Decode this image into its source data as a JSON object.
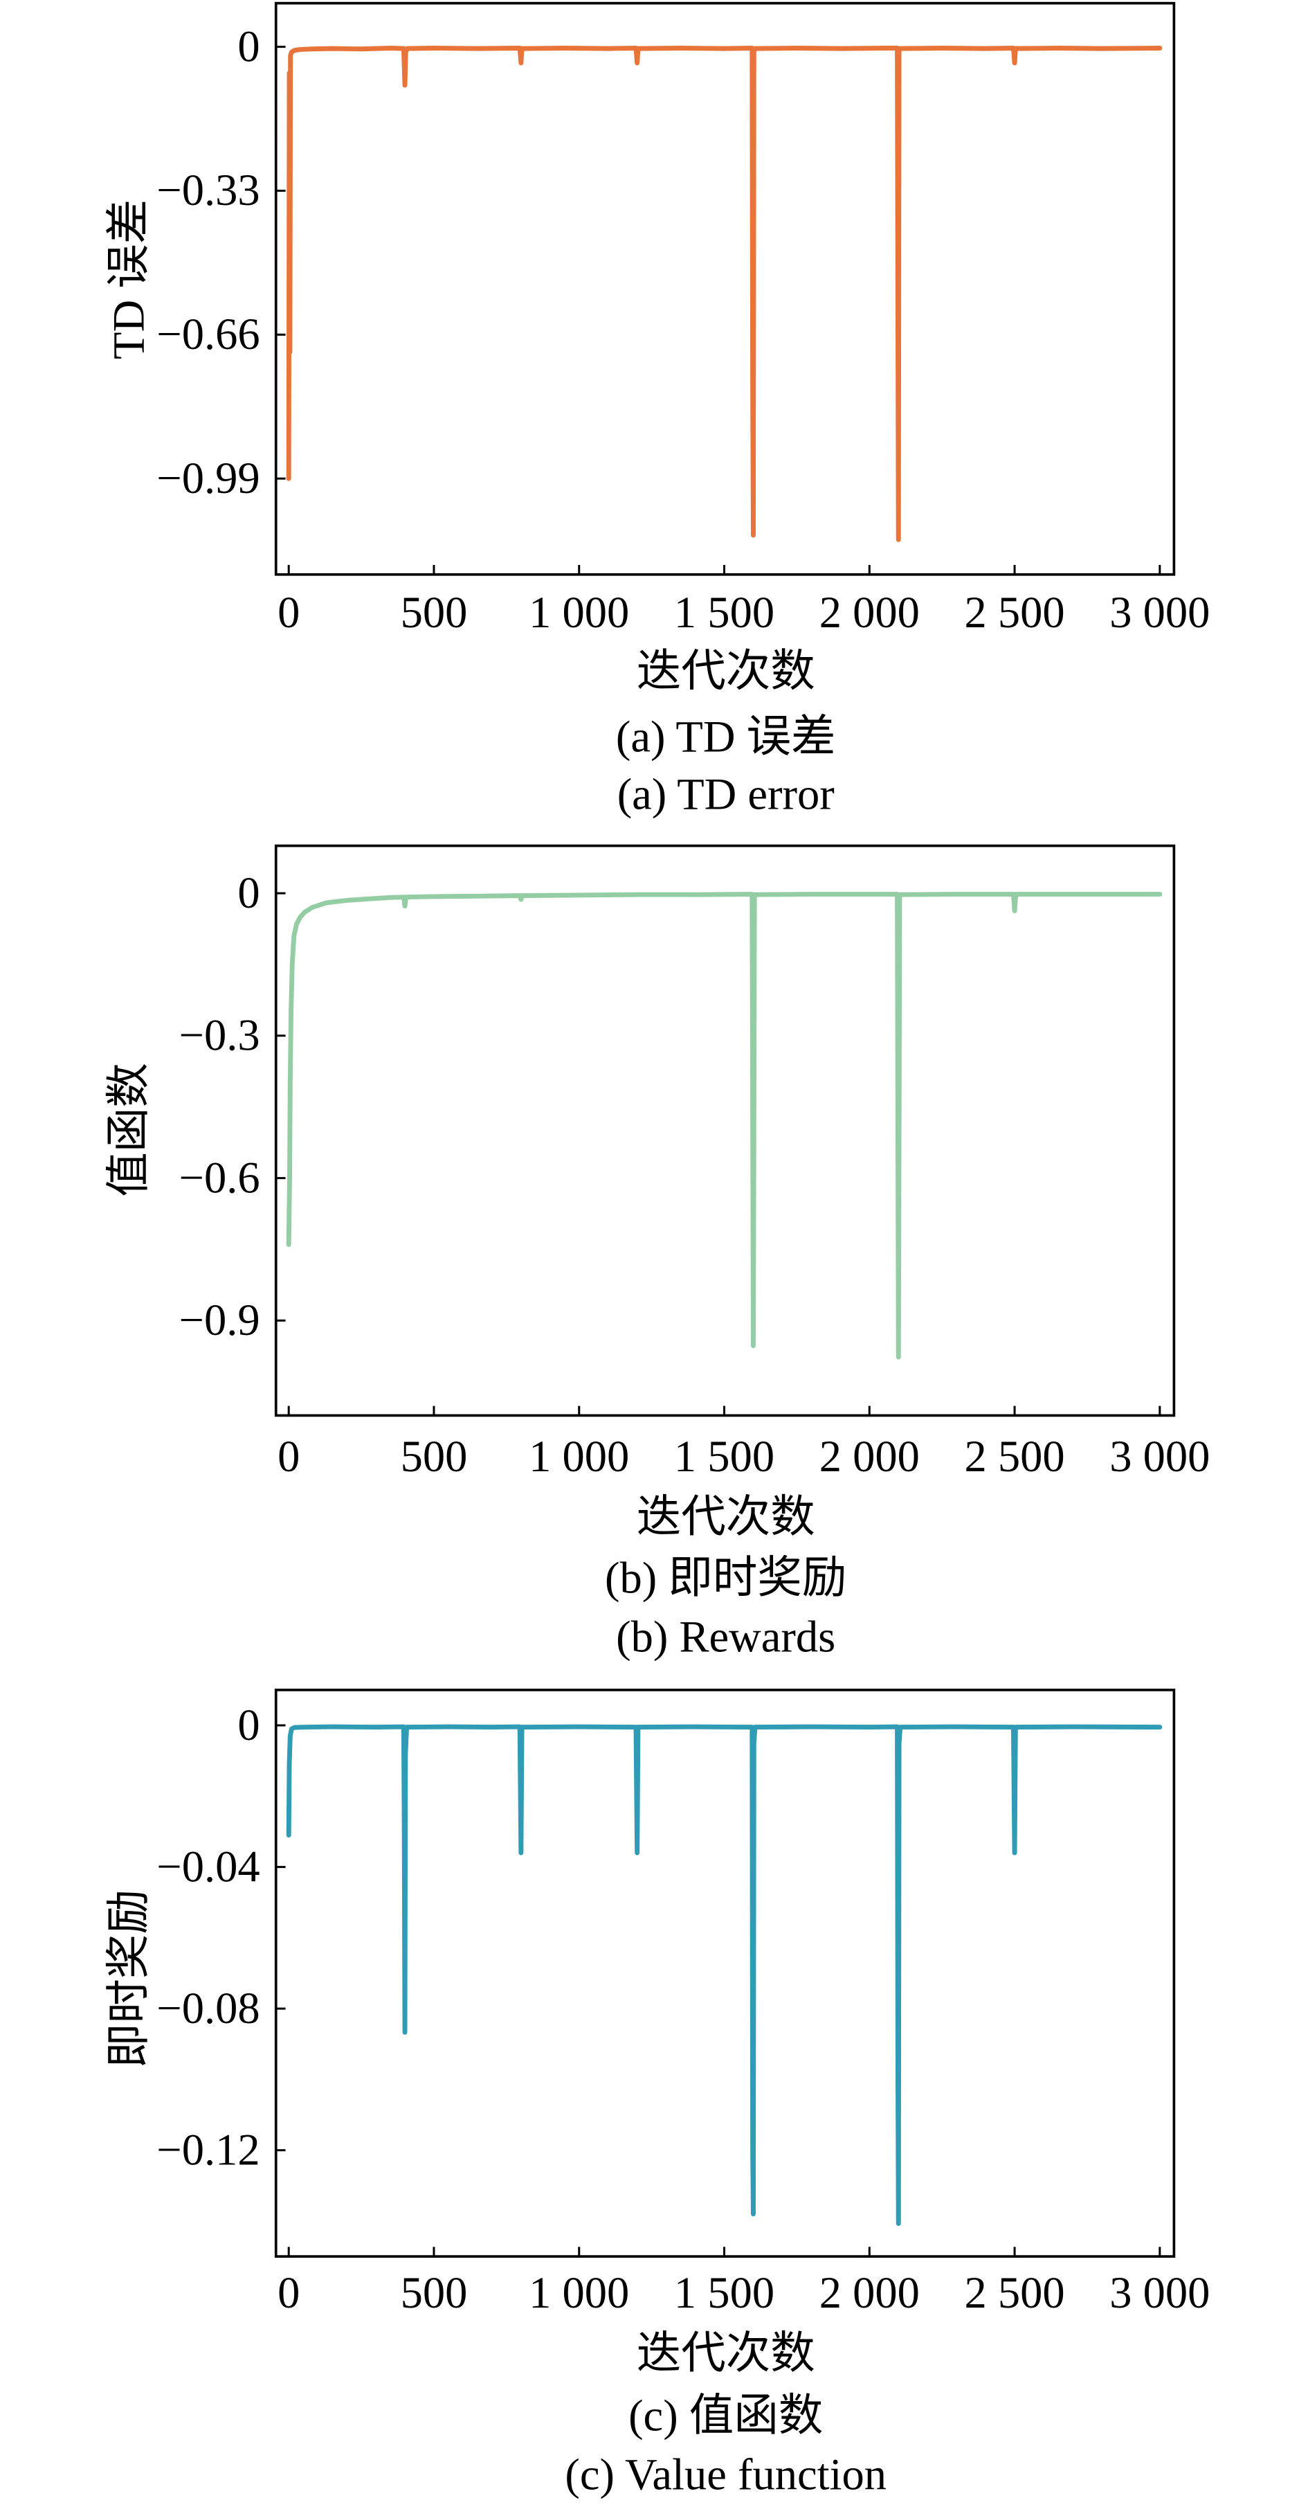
{
  "chart_data": [
    {
      "type": "line",
      "xlabel": "迭代次数",
      "ylabel": "TD 误差",
      "caption": [
        "(a) TD 误差",
        "(a) TD error"
      ],
      "x_ticks": [
        0,
        500,
        1000,
        1500,
        2000,
        2500,
        3000
      ],
      "x_tick_labels": [
        "0",
        "500",
        "1 000",
        "1 500",
        "2 000",
        "2 500",
        "3 000"
      ],
      "y_ticks": [
        0,
        -0.33,
        -0.66,
        -0.99
      ],
      "y_tick_labels": [
        "0",
        "−0.33",
        "−0.66",
        "−0.99"
      ],
      "xlim": [
        -44,
        3049
      ],
      "ylim": [
        -1.21,
        0.1
      ],
      "grid": false,
      "color": "#e8743a",
      "series": [
        {
          "points": [
            [
              0,
              -0.99
            ],
            [
              2,
              -0.06
            ],
            [
              4,
              -0.7
            ],
            [
              6,
              -0.02
            ],
            [
              10,
              -0.012
            ],
            [
              20,
              -0.008
            ],
            [
              40,
              -0.006
            ],
            [
              80,
              -0.005
            ],
            [
              150,
              -0.004
            ],
            [
              250,
              -0.005
            ],
            [
              350,
              -0.003
            ],
            [
              396,
              -0.004
            ],
            [
              400,
              -0.088
            ],
            [
              403,
              -0.012
            ],
            [
              408,
              -0.004
            ],
            [
              500,
              -0.003
            ],
            [
              650,
              -0.004
            ],
            [
              796,
              -0.003
            ],
            [
              800,
              -0.037
            ],
            [
              803,
              -0.004
            ],
            [
              950,
              -0.003
            ],
            [
              1100,
              -0.004
            ],
            [
              1196,
              -0.003
            ],
            [
              1200,
              -0.037
            ],
            [
              1203,
              -0.004
            ],
            [
              1350,
              -0.003
            ],
            [
              1500,
              -0.004
            ],
            [
              1596,
              -0.003
            ],
            [
              1598,
              -0.79
            ],
            [
              1600,
              -1.12
            ],
            [
              1602,
              -0.01
            ],
            [
              1606,
              -0.004
            ],
            [
              1750,
              -0.003
            ],
            [
              1900,
              -0.004
            ],
            [
              2050,
              -0.003
            ],
            [
              2096,
              -0.003
            ],
            [
              2098,
              -0.62
            ],
            [
              2100,
              -1.13
            ],
            [
              2102,
              -0.01
            ],
            [
              2106,
              -0.004
            ],
            [
              2250,
              -0.003
            ],
            [
              2400,
              -0.004
            ],
            [
              2496,
              -0.003
            ],
            [
              2500,
              -0.037
            ],
            [
              2503,
              -0.004
            ],
            [
              2650,
              -0.003
            ],
            [
              2800,
              -0.004
            ],
            [
              3000,
              -0.003
            ]
          ]
        }
      ]
    },
    {
      "type": "line",
      "xlabel": "迭代次数",
      "ylabel": "值函数",
      "caption": [
        "(b) 即时奖励",
        "(b) Rewards"
      ],
      "x_ticks": [
        0,
        500,
        1000,
        1500,
        2000,
        2500,
        3000
      ],
      "x_tick_labels": [
        "0",
        "500",
        "1 000",
        "1 500",
        "2 000",
        "2 500",
        "3 000"
      ],
      "y_ticks": [
        0,
        -0.3,
        -0.6,
        -0.9
      ],
      "y_tick_labels": [
        "0",
        "−0.3",
        "−0.6",
        "−0.9"
      ],
      "xlim": [
        -44,
        3049
      ],
      "ylim": [
        -1.1,
        0.1
      ],
      "grid": false,
      "color": "#94cca4",
      "series": [
        {
          "points": [
            [
              0,
              -0.74
            ],
            [
              3,
              -0.6
            ],
            [
              5,
              -0.4
            ],
            [
              8,
              -0.25
            ],
            [
              12,
              -0.15
            ],
            [
              18,
              -0.09
            ],
            [
              27,
              -0.065
            ],
            [
              40,
              -0.05
            ],
            [
              55,
              -0.04
            ],
            [
              80,
              -0.03
            ],
            [
              130,
              -0.02
            ],
            [
              200,
              -0.015
            ],
            [
              270,
              -0.012
            ],
            [
              350,
              -0.009
            ],
            [
              396,
              -0.008
            ],
            [
              400,
              -0.027
            ],
            [
              404,
              -0.008
            ],
            [
              500,
              -0.007
            ],
            [
              650,
              -0.006
            ],
            [
              796,
              -0.005
            ],
            [
              800,
              -0.013
            ],
            [
              804,
              -0.005
            ],
            [
              1000,
              -0.004
            ],
            [
              1200,
              -0.003
            ],
            [
              1400,
              -0.003
            ],
            [
              1596,
              -0.002
            ],
            [
              1600,
              -0.953
            ],
            [
              1604,
              -0.003
            ],
            [
              1800,
              -0.002
            ],
            [
              2000,
              -0.002
            ],
            [
              2096,
              -0.002
            ],
            [
              2100,
              -0.977
            ],
            [
              2104,
              -0.003
            ],
            [
              2300,
              -0.002
            ],
            [
              2496,
              -0.002
            ],
            [
              2500,
              -0.037
            ],
            [
              2504,
              -0.002
            ],
            [
              2700,
              -0.002
            ],
            [
              3000,
              -0.002
            ]
          ]
        }
      ]
    },
    {
      "type": "line",
      "xlabel": "迭代次数",
      "ylabel": "即时奖励",
      "caption": [
        "(c) 值函数",
        "(c) Value function"
      ],
      "x_ticks": [
        0,
        500,
        1000,
        1500,
        2000,
        2500,
        3000
      ],
      "x_tick_labels": [
        "0",
        "500",
        "1 000",
        "1 500",
        "2 000",
        "2 500",
        "3 000"
      ],
      "y_ticks": [
        0,
        -0.04,
        -0.08,
        -0.12
      ],
      "y_tick_labels": [
        "0",
        "−0.04",
        "−0.08",
        "−0.12"
      ],
      "xlim": [
        -44,
        3049
      ],
      "ylim": [
        -0.15,
        0.01
      ],
      "grid": false,
      "color": "#2f9bb4",
      "series": [
        {
          "points": [
            [
              0,
              -0.031
            ],
            [
              2,
              -0.011
            ],
            [
              5,
              -0.003
            ],
            [
              10,
              -0.001
            ],
            [
              20,
              -0.0006
            ],
            [
              60,
              -0.0005
            ],
            [
              150,
              -0.0004
            ],
            [
              300,
              -0.0005
            ],
            [
              396,
              -0.0004
            ],
            [
              398,
              -0.03
            ],
            [
              400,
              -0.0867
            ],
            [
              402,
              -0.008
            ],
            [
              406,
              -0.0005
            ],
            [
              550,
              -0.0004
            ],
            [
              700,
              -0.0005
            ],
            [
              796,
              -0.0004
            ],
            [
              800,
              -0.036
            ],
            [
              803,
              -0.0005
            ],
            [
              1000,
              -0.0004
            ],
            [
              1196,
              -0.0005
            ],
            [
              1200,
              -0.036
            ],
            [
              1203,
              -0.0005
            ],
            [
              1400,
              -0.0004
            ],
            [
              1596,
              -0.0005
            ],
            [
              1598,
              -0.121
            ],
            [
              1600,
              -0.138
            ],
            [
              1602,
              -0.005
            ],
            [
              1606,
              -0.0005
            ],
            [
              1800,
              -0.0004
            ],
            [
              2000,
              -0.0005
            ],
            [
              2096,
              -0.0004
            ],
            [
              2098,
              -0.096
            ],
            [
              2100,
              -0.1407
            ],
            [
              2102,
              -0.005
            ],
            [
              2106,
              -0.0005
            ],
            [
              2300,
              -0.0004
            ],
            [
              2496,
              -0.0005
            ],
            [
              2500,
              -0.036
            ],
            [
              2503,
              -0.0005
            ],
            [
              2700,
              -0.0004
            ],
            [
              3000,
              -0.0005
            ]
          ]
        }
      ]
    }
  ]
}
